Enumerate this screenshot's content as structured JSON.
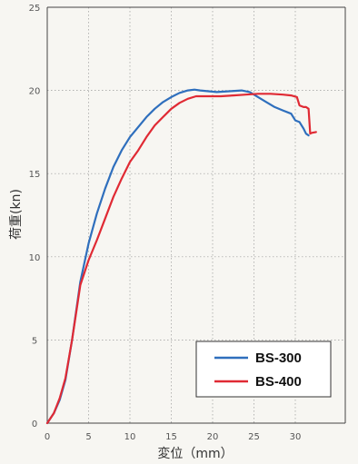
{
  "chart_data": {
    "type": "line",
    "title": "",
    "xlabel": "変位（mm）",
    "ylabel": "荷重(kn)",
    "xlim": [
      0,
      36
    ],
    "ylim": [
      0,
      25
    ],
    "xticks": [
      0,
      5,
      10,
      15,
      20,
      25,
      30
    ],
    "yticks": [
      0,
      5,
      10,
      15,
      20,
      25
    ],
    "grid": true,
    "legend_position": "bottom-right",
    "series": [
      {
        "name": "BS-300",
        "color": "#2f6fbd",
        "x": [
          0,
          0.8,
          1.5,
          2.2,
          3.0,
          4.0,
          5.0,
          6.0,
          7.0,
          8.0,
          9.0,
          10.0,
          11.0,
          12.0,
          13.0,
          14.0,
          15.0,
          16.0,
          17.0,
          17.8,
          18.5,
          19.5,
          20.5,
          22.0,
          23.5,
          24.5,
          25.5,
          26.5,
          27.5,
          28.5,
          29.5,
          30.0,
          30.5,
          31.0,
          31.3,
          31.6
        ],
        "y": [
          0,
          0.6,
          1.4,
          2.6,
          5.0,
          8.5,
          10.8,
          12.6,
          14.1,
          15.4,
          16.4,
          17.2,
          17.8,
          18.4,
          18.9,
          19.3,
          19.6,
          19.85,
          20.0,
          20.05,
          20.0,
          19.95,
          19.9,
          19.95,
          20.0,
          19.9,
          19.6,
          19.3,
          19.0,
          18.8,
          18.6,
          18.2,
          18.1,
          17.7,
          17.4,
          17.3
        ]
      },
      {
        "name": "BS-400",
        "color": "#e02a34",
        "x": [
          0,
          0.8,
          1.5,
          2.2,
          3.0,
          4.0,
          5.0,
          6.0,
          7.0,
          8.0,
          9.0,
          10.0,
          11.0,
          12.0,
          13.0,
          14.0,
          15.0,
          16.0,
          17.0,
          18.0,
          19.5,
          21.0,
          22.5,
          24.0,
          25.5,
          27.0,
          28.5,
          29.5,
          30.2,
          30.5,
          31.0,
          31.3,
          31.6,
          31.8,
          32.0,
          32.5
        ],
        "y": [
          0,
          0.6,
          1.5,
          2.7,
          5.0,
          8.3,
          9.8,
          11.0,
          12.3,
          13.6,
          14.7,
          15.7,
          16.4,
          17.2,
          17.9,
          18.4,
          18.9,
          19.25,
          19.5,
          19.65,
          19.65,
          19.65,
          19.7,
          19.75,
          19.8,
          19.8,
          19.75,
          19.7,
          19.6,
          19.1,
          19.0,
          19.0,
          18.9,
          17.4,
          17.45,
          17.5
        ]
      }
    ]
  }
}
